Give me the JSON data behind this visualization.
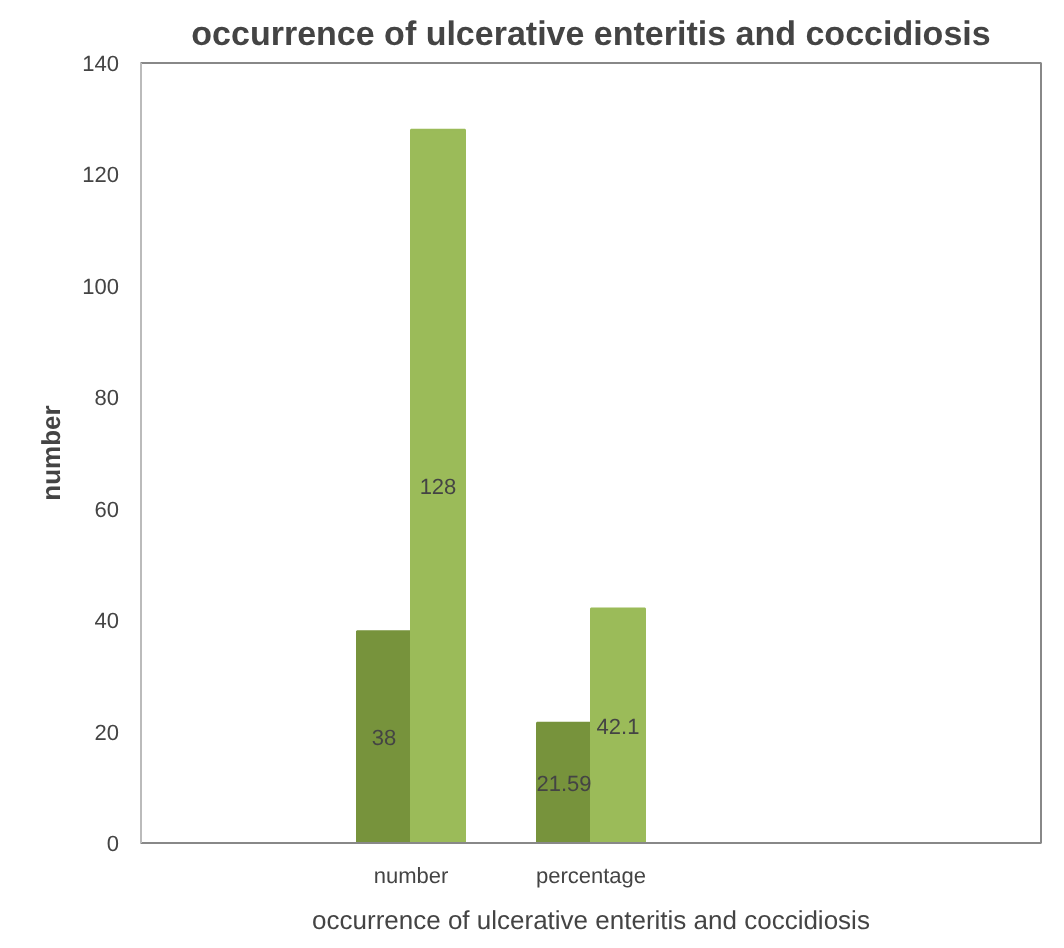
{
  "chart_data": {
    "type": "bar",
    "title": "occurrence of ulcerative enteritis and coccidiosis",
    "xlabel": "occurrence of ulcerative enteritis and coccidiosis",
    "ylabel": "number",
    "categories": [
      null,
      "number",
      "percentage",
      null,
      null
    ],
    "series": [
      {
        "color": "#77933c",
        "values": [
          null,
          38,
          21.59,
          null,
          null
        ]
      },
      {
        "color": "#9bbb59",
        "values": [
          null,
          128,
          42.1,
          null,
          null
        ]
      }
    ],
    "ylim": [
      0,
      140
    ],
    "yticks": [
      0,
      20,
      40,
      60,
      80,
      100,
      120,
      140
    ],
    "grid": false,
    "data_labels": true
  }
}
